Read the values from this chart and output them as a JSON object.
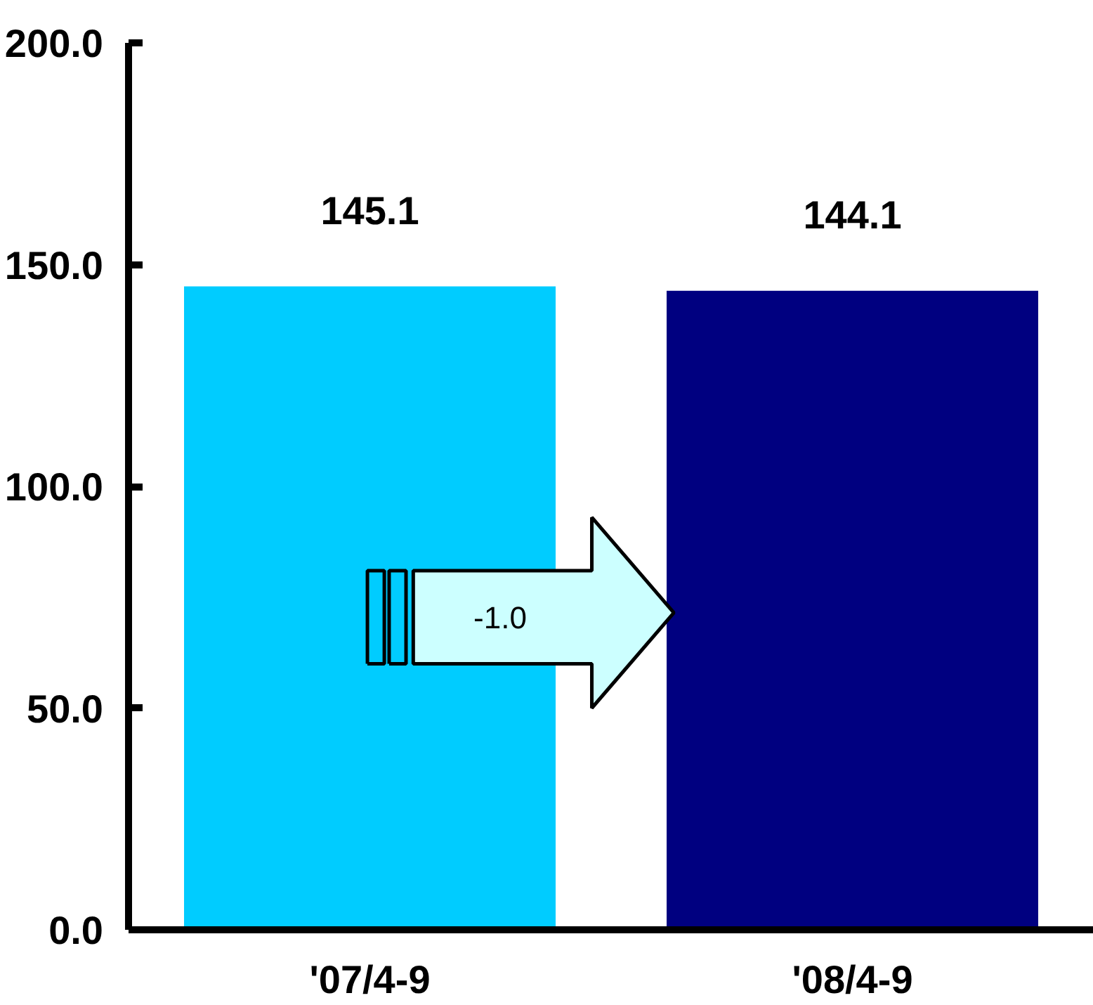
{
  "chart_data": {
    "type": "bar",
    "categories": [
      "'07/4-9",
      "'08/4-9"
    ],
    "values": [
      145.1,
      144.1
    ],
    "colors": [
      "#00ccff",
      "#000080"
    ],
    "ylim": [
      0,
      200
    ],
    "yticks": [
      {
        "value": 0,
        "label": "0.0"
      },
      {
        "value": 50,
        "label": "50.0"
      },
      {
        "value": 100,
        "label": "100.0"
      },
      {
        "value": 150,
        "label": "150.0"
      },
      {
        "value": 200,
        "label": "200.0"
      }
    ],
    "data_labels": true,
    "grid": false,
    "annotations": [
      "-1.0"
    ]
  }
}
